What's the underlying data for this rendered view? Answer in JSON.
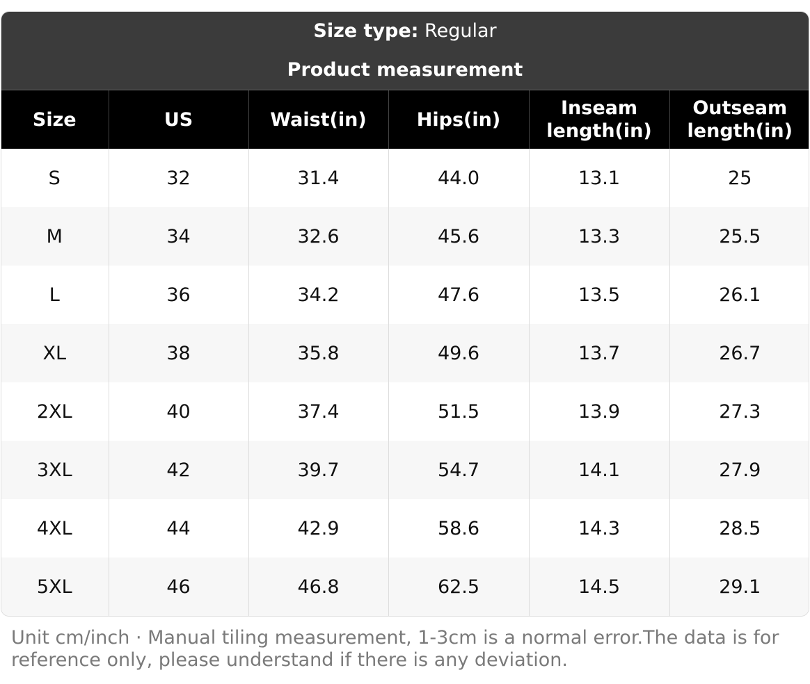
{
  "header": {
    "size_type_label": "Size type:",
    "size_type_value": "Regular",
    "title": "Product measurement"
  },
  "table": {
    "columns": [
      "Size",
      "US",
      "Waist(in)",
      "Hips(in)",
      "Inseam length(in)",
      "Outseam length(in)"
    ],
    "rows": [
      [
        "S",
        "32",
        "31.4",
        "44.0",
        "13.1",
        "25"
      ],
      [
        "M",
        "34",
        "32.6",
        "45.6",
        "13.3",
        "25.5"
      ],
      [
        "L",
        "36",
        "34.2",
        "47.6",
        "13.5",
        "26.1"
      ],
      [
        "XL",
        "38",
        "35.8",
        "49.6",
        "13.7",
        "26.7"
      ],
      [
        "2XL",
        "40",
        "37.4",
        "51.5",
        "13.9",
        "27.3"
      ],
      [
        "3XL",
        "42",
        "39.7",
        "54.7",
        "14.1",
        "27.9"
      ],
      [
        "4XL",
        "44",
        "42.9",
        "58.6",
        "14.3",
        "28.5"
      ],
      [
        "5XL",
        "46",
        "46.8",
        "62.5",
        "14.5",
        "29.1"
      ]
    ]
  },
  "footer": {
    "note": "Unit cm/inch · Manual tiling measurement, 1-3cm is a normal error.The data is for reference only, please understand if there is any deviation."
  },
  "colors": {
    "header_bg": "#3b3b3b",
    "table_header_bg": "#000000",
    "row_alt_bg": "#f7f7f7",
    "note_text": "#7a7a7a"
  }
}
